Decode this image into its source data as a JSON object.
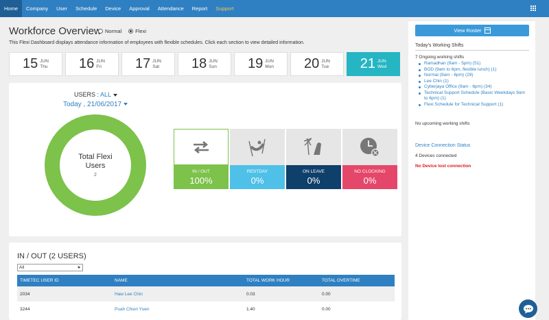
{
  "nav": {
    "items": [
      "Home",
      "Company",
      "User",
      "Schedule",
      "Device",
      "Approval",
      "Attendance",
      "Report",
      "Support"
    ],
    "active": "Home",
    "apps_icon": "grid-icon"
  },
  "header": {
    "title": "Workforce Overview",
    "mode_normal": "Normal",
    "mode_flexi": "Flexi",
    "selected_mode": "Flexi",
    "intro": "This Flexi Dashboard displays attendance information of employees with flexible schedules. Click each section to view detailed information."
  },
  "dates": [
    {
      "day": "15",
      "month": "JUN",
      "weekday": "Thu"
    },
    {
      "day": "16",
      "month": "JUN",
      "weekday": "Fri"
    },
    {
      "day": "17",
      "month": "JUN",
      "weekday": "Sat"
    },
    {
      "day": "18",
      "month": "JUN",
      "weekday": "Sun"
    },
    {
      "day": "19",
      "month": "JUN",
      "weekday": "Mon"
    },
    {
      "day": "20",
      "month": "JUN",
      "weekday": "Tue"
    },
    {
      "day": "21",
      "month": "JUN",
      "weekday": "Wed"
    }
  ],
  "summary": {
    "users_label": "USERS :",
    "users_value": "ALL",
    "date_label": "Today , 21/06/2017",
    "donut_title": "Total Flexi Users",
    "donut_count": "2",
    "donut_color": "#7dc24b"
  },
  "tiles": [
    {
      "label": "IN / OUT",
      "percent": "100%",
      "icon": "in-out-arrows-icon",
      "color": "#7dc24b"
    },
    {
      "label": "RESTDAY",
      "percent": "0%",
      "icon": "hammock-icon",
      "color": "#4fc0e8"
    },
    {
      "label": "ON LEAVE",
      "percent": "0%",
      "icon": "beach-chair-icon",
      "color": "#0f3f6b"
    },
    {
      "label": "NO CLOCKING",
      "percent": "0%",
      "icon": "clock-cancel-icon",
      "color": "#e5476a"
    }
  ],
  "inout": {
    "title": "IN / OUT (2 USERS)",
    "filter": "All",
    "columns": [
      "TIMETEC USER ID",
      "NAME",
      "TOTAL WORK HOUR",
      "TOTAL OVERTIME"
    ],
    "rows": [
      {
        "id": "2034",
        "name": "Haw Lee Chin",
        "work": "0.03",
        "overtime": "0.00"
      },
      {
        "id": "3244",
        "name": "Puah Chiun Yuen",
        "work": "1.40",
        "overtime": "0.00"
      }
    ]
  },
  "sidebar": {
    "view_roster": "View Roster",
    "heading": "Today's Working Shifts",
    "ongoing": "7 Ongoing working shifts",
    "shifts": [
      "Ramadhan (9am - 5pm) (51)",
      "BOD (9am to 6pm, flexible lunch) (1)",
      "Normal (9am - 6pm) (29)",
      "Lee Chin (1)",
      "Cyberjaya Office (9am - 6pm) (34)",
      "Technical Support Schedule (Basic Weekdays 9am to 6pm) (1)",
      "Flexi Schedule for Technical Support (1)"
    ],
    "no_upcoming": "No upcoming working shifts",
    "device_title": "Device Connection Status",
    "devices_connected": "4 Devices connected",
    "no_lost": "No Device lost connection"
  },
  "chat": {
    "icon": "chat-icon"
  }
}
